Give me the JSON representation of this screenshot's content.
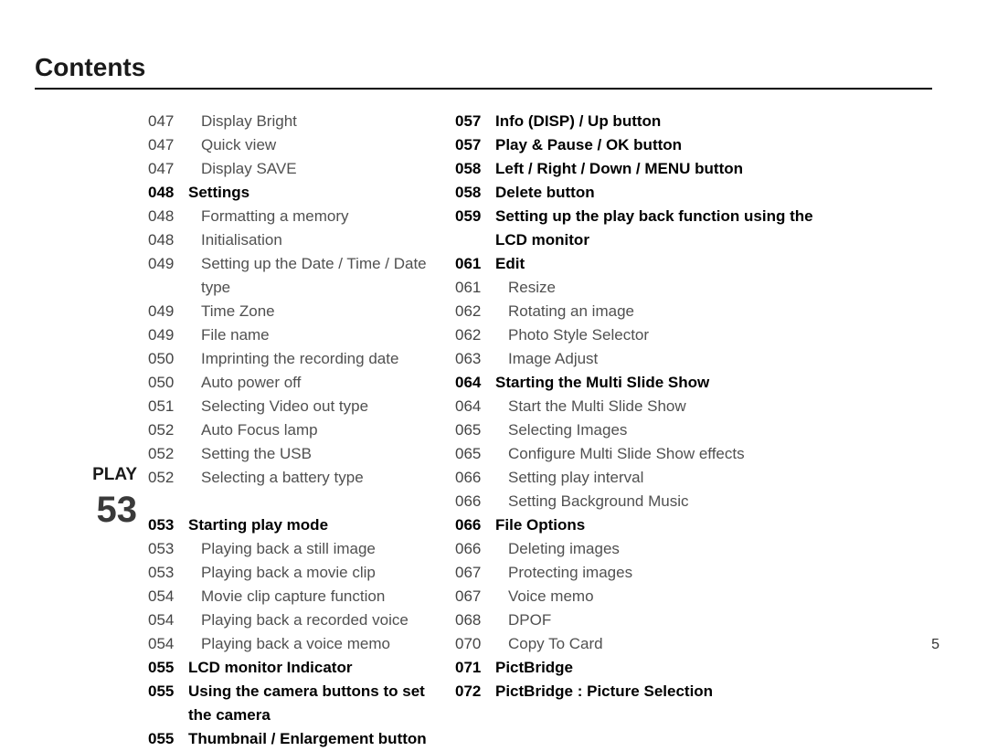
{
  "title": "Contents",
  "page_number": "5",
  "left_column": {
    "section_label_1": "",
    "section_num_1": "",
    "section_label_2": "PLAY",
    "section_num_2": "53",
    "group1": [
      {
        "pg": "047",
        "txt": "Display Bright",
        "bold": false,
        "indent": true
      },
      {
        "pg": "047",
        "txt": "Quick view",
        "bold": false,
        "indent": true
      },
      {
        "pg": "047",
        "txt": "Display SAVE",
        "bold": false,
        "indent": true
      },
      {
        "pg": "048",
        "txt": "Settings",
        "bold": true,
        "indent": false
      },
      {
        "pg": "048",
        "txt": "Formatting a memory",
        "bold": false,
        "indent": true
      },
      {
        "pg": "048",
        "txt": "Initialisation",
        "bold": false,
        "indent": true
      },
      {
        "pg": "049",
        "txt": "Setting up the Date / Time / Date type",
        "bold": false,
        "indent": true
      },
      {
        "pg": "049",
        "txt": "Time Zone",
        "bold": false,
        "indent": true
      },
      {
        "pg": "049",
        "txt": "File name",
        "bold": false,
        "indent": true
      },
      {
        "pg": "050",
        "txt": "Imprinting the recording date",
        "bold": false,
        "indent": true
      },
      {
        "pg": "050",
        "txt": "Auto power off",
        "bold": false,
        "indent": true
      },
      {
        "pg": "051",
        "txt": "Selecting Video out type",
        "bold": false,
        "indent": true
      },
      {
        "pg": "052",
        "txt": "Auto Focus lamp",
        "bold": false,
        "indent": true
      },
      {
        "pg": "052",
        "txt": "Setting the USB",
        "bold": false,
        "indent": true
      },
      {
        "pg": "052",
        "txt": "Selecting a battery type",
        "bold": false,
        "indent": true
      }
    ],
    "group2": [
      {
        "pg": "053",
        "txt": "Starting play mode",
        "bold": true,
        "indent": false
      },
      {
        "pg": "053",
        "txt": "Playing back a still image",
        "bold": false,
        "indent": true
      },
      {
        "pg": "053",
        "txt": "Playing back a movie clip",
        "bold": false,
        "indent": true
      },
      {
        "pg": "054",
        "txt": "Movie clip capture function",
        "bold": false,
        "indent": true
      },
      {
        "pg": "054",
        "txt": "Playing back a recorded voice",
        "bold": false,
        "indent": true
      },
      {
        "pg": "054",
        "txt": "Playing back a voice memo",
        "bold": false,
        "indent": true
      },
      {
        "pg": "055",
        "txt": "LCD monitor Indicator",
        "bold": true,
        "indent": false
      },
      {
        "pg": "055",
        "txt": "Using the camera buttons to set the camera",
        "bold": true,
        "indent": false
      },
      {
        "pg": "055",
        "txt": "Thumbnail / Enlargement button",
        "bold": true,
        "indent": false
      }
    ]
  },
  "right_column": {
    "entries": [
      {
        "pg": "057",
        "txt": "Info (DISP) / Up button",
        "bold": true,
        "indent": false
      },
      {
        "pg": "057",
        "txt": "Play & Pause / OK button",
        "bold": true,
        "indent": false
      },
      {
        "pg": "058",
        "txt": "Left / Right / Down / MENU button",
        "bold": true,
        "indent": false
      },
      {
        "pg": "058",
        "txt": "Delete button",
        "bold": true,
        "indent": false
      },
      {
        "pg": "059",
        "txt": "Setting up the play back function using the LCD monitor",
        "bold": true,
        "indent": false
      },
      {
        "pg": "061",
        "txt": "Edit",
        "bold": true,
        "indent": false
      },
      {
        "pg": "061",
        "txt": "Resize",
        "bold": false,
        "indent": true
      },
      {
        "pg": "062",
        "txt": "Rotating an image",
        "bold": false,
        "indent": true
      },
      {
        "pg": "062",
        "txt": "Photo Style Selector",
        "bold": false,
        "indent": true
      },
      {
        "pg": "063",
        "txt": "Image Adjust",
        "bold": false,
        "indent": true
      },
      {
        "pg": "064",
        "txt": "Starting the Multi Slide Show",
        "bold": true,
        "indent": false
      },
      {
        "pg": "064",
        "txt": "Start the Multi Slide Show",
        "bold": false,
        "indent": true
      },
      {
        "pg": "065",
        "txt": "Selecting Images",
        "bold": false,
        "indent": true
      },
      {
        "pg": "065",
        "txt": "Configure Multi Slide Show effects",
        "bold": false,
        "indent": true
      },
      {
        "pg": "066",
        "txt": "Setting play interval",
        "bold": false,
        "indent": true
      },
      {
        "pg": "066",
        "txt": "Setting Background Music",
        "bold": false,
        "indent": true
      },
      {
        "pg": "066",
        "txt": "File Options",
        "bold": true,
        "indent": false
      },
      {
        "pg": "066",
        "txt": "Deleting images",
        "bold": false,
        "indent": true
      },
      {
        "pg": "067",
        "txt": "Protecting images",
        "bold": false,
        "indent": true
      },
      {
        "pg": "067",
        "txt": "Voice memo",
        "bold": false,
        "indent": true
      },
      {
        "pg": "068",
        "txt": "DPOF",
        "bold": false,
        "indent": true
      },
      {
        "pg": "070",
        "txt": "Copy To Card",
        "bold": false,
        "indent": true
      },
      {
        "pg": "071",
        "txt": "PictBridge",
        "bold": true,
        "indent": false
      },
      {
        "pg": "072",
        "txt": "PictBridge : Picture Selection",
        "bold": true,
        "indent": false
      }
    ]
  }
}
